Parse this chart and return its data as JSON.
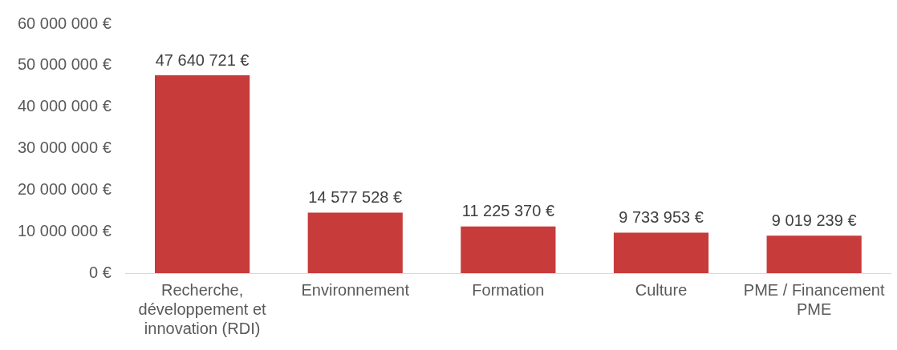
{
  "chart_data": {
    "type": "bar",
    "categories": [
      "Recherche, développement et innovation (RDI)",
      "Environnement",
      "Formation",
      "Culture",
      "PME / Financement PME"
    ],
    "values": [
      47640721,
      14577528,
      11225370,
      9733953,
      9019239
    ],
    "color": "#c73b3b",
    "value_labels": [
      "47 640 721 €",
      "14 577 528 €",
      "11 225 370 €",
      "9 733 953 €",
      "9 019 239 €"
    ],
    "ylim": [
      0,
      60000000
    ],
    "yticks": [
      {
        "value": 0,
        "label": "0 €"
      },
      {
        "value": 10000000,
        "label": "10 000 000 €"
      },
      {
        "value": 20000000,
        "label": "20 000 000 €"
      },
      {
        "value": 30000000,
        "label": "30 000 000 €"
      },
      {
        "value": 40000000,
        "label": "40 000 000 €"
      },
      {
        "value": 50000000,
        "label": "50 000 000 €"
      },
      {
        "value": 60000000,
        "label": "60 000 000 €"
      }
    ],
    "grid": false,
    "legend": false
  }
}
